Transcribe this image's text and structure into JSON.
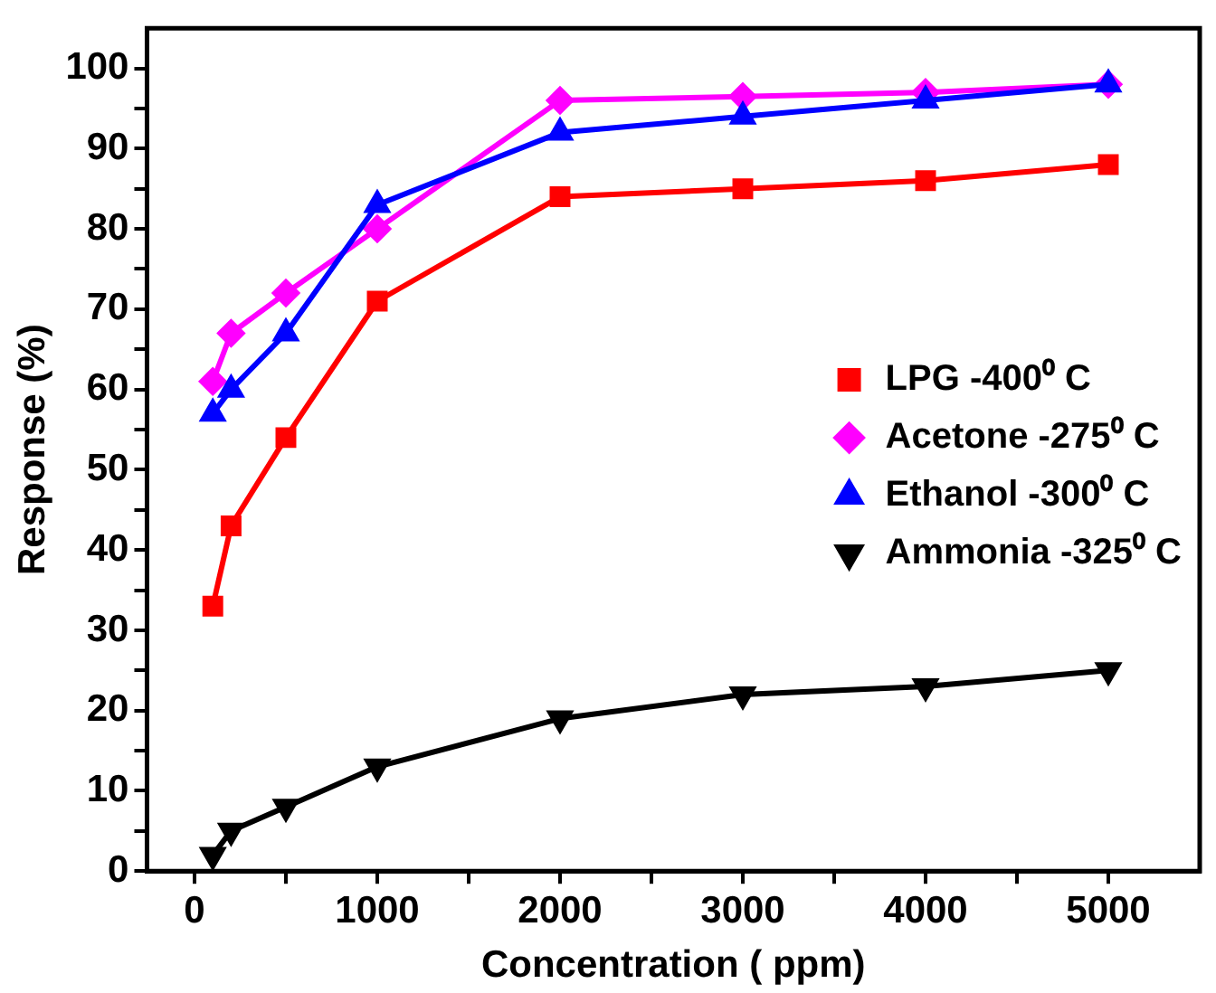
{
  "chart_data": {
    "type": "line",
    "xlabel": "Concentration ( ppm)",
    "ylabel": "Response (%)",
    "x": [
      100,
      200,
      500,
      1000,
      2000,
      3000,
      4000,
      5000
    ],
    "series": [
      {
        "name": "LPG -400⁰ C",
        "color": "#ff0000",
        "marker": "square",
        "values": [
          33,
          43,
          54,
          71,
          84,
          85,
          86,
          88
        ]
      },
      {
        "name": "Acetone -275⁰ C",
        "color": "#ff00ff",
        "marker": "diamond",
        "values": [
          61,
          67,
          72,
          80,
          96,
          96.5,
          97,
          98
        ]
      },
      {
        "name": "Ethanol -300⁰ C",
        "color": "#0000ff",
        "marker": "triangle",
        "values": [
          57,
          60,
          67,
          83,
          92,
          94,
          96,
          98
        ]
      },
      {
        "name": "Ammonia -325⁰ C",
        "color": "#000000",
        "marker": "triangle-down",
        "values": [
          2,
          5,
          8,
          13,
          19,
          22,
          23,
          25
        ]
      }
    ],
    "xlim": [
      -260,
      5500
    ],
    "xticks": [
      0,
      {
        "value": 500,
        "label": null
      },
      1000,
      {
        "value": 1500,
        "label": null
      },
      2000,
      {
        "value": 2500,
        "label": null
      },
      3000,
      {
        "value": 3500,
        "label": null
      },
      4000,
      {
        "value": 4500,
        "label": null
      },
      5000
    ],
    "ylim": [
      0,
      105
    ],
    "yticks": [
      0,
      {
        "value": 5,
        "label": null
      },
      10,
      {
        "value": 15,
        "label": null
      },
      20,
      {
        "value": 25,
        "label": null
      },
      30,
      {
        "value": 35,
        "label": null
      },
      40,
      {
        "value": 45,
        "label": null
      },
      50,
      {
        "value": 55,
        "label": null
      },
      60,
      {
        "value": 65,
        "label": null
      },
      70,
      {
        "value": 75,
        "label": null
      },
      80,
      {
        "value": 85,
        "label": null
      },
      90,
      {
        "value": 95,
        "label": null
      },
      100
    ],
    "grid": false,
    "legend": "right",
    "line_style": "solid"
  }
}
